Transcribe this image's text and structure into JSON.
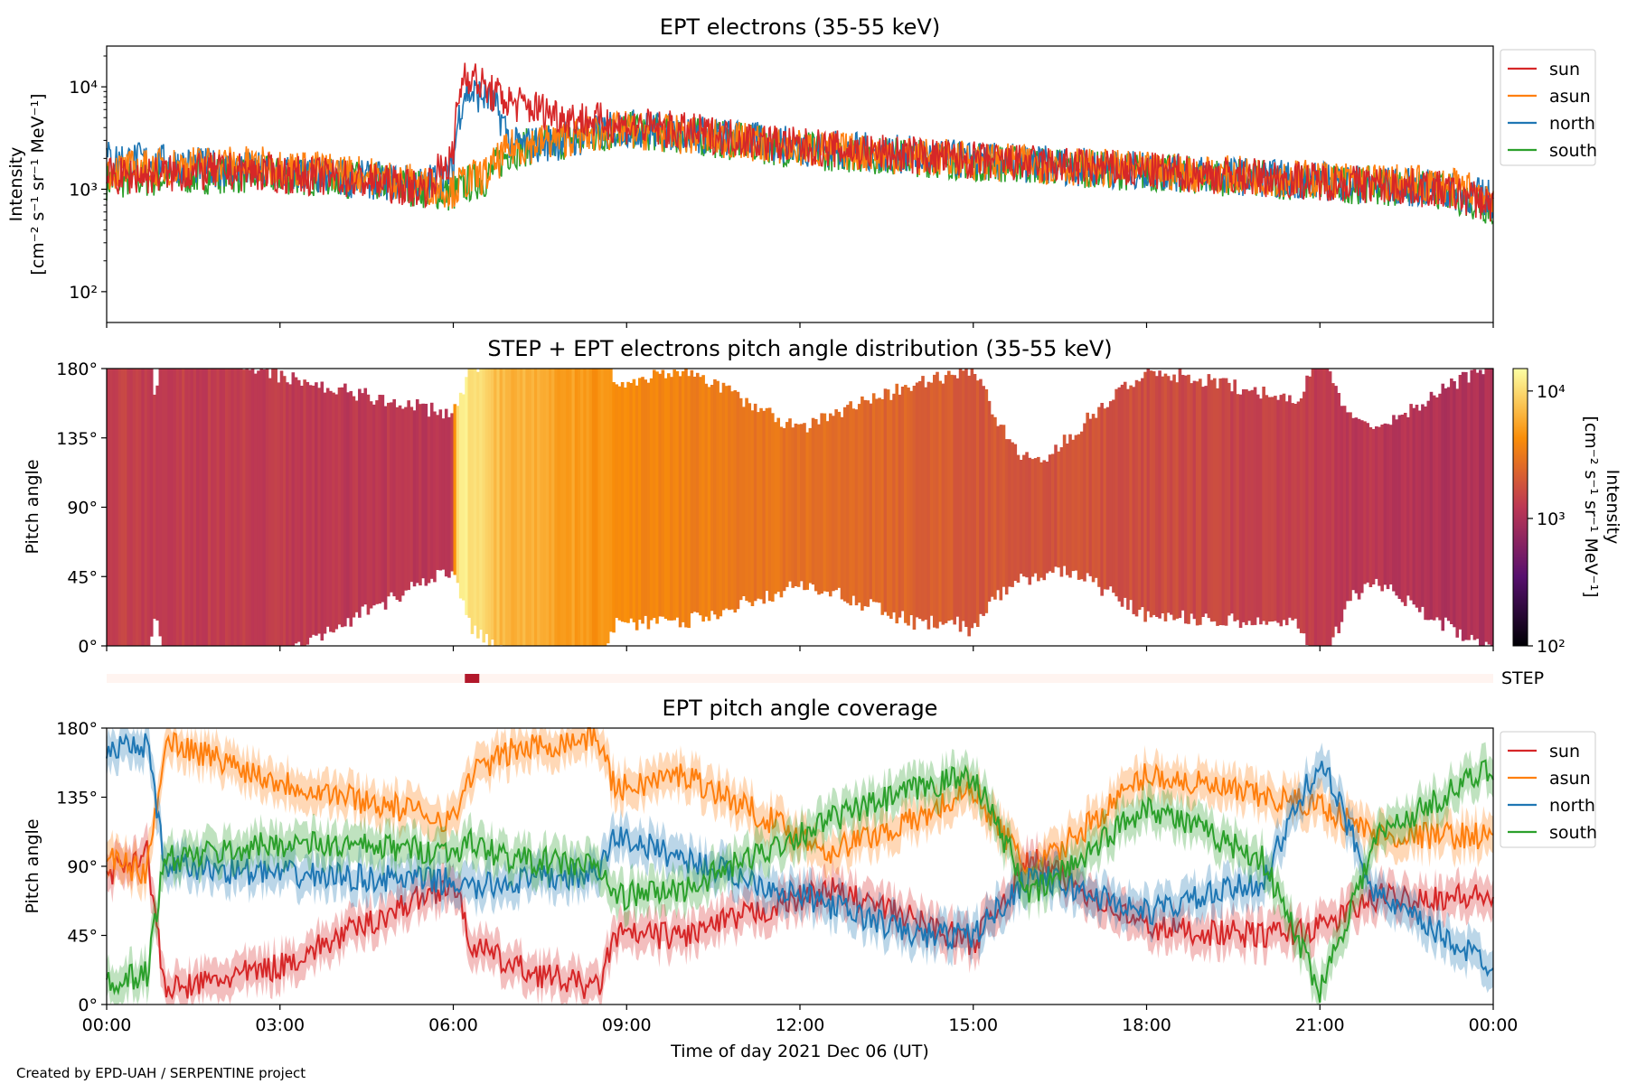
{
  "figure": {
    "credit": "Created by EPD-UAH / SERPENTINE project",
    "xlabel": "Time of day 2021 Dec 06 (UT)",
    "xticks": [
      "00:00",
      "03:00",
      "06:00",
      "09:00",
      "12:00",
      "15:00",
      "18:00",
      "21:00",
      "00:00"
    ]
  },
  "colors": {
    "sun": "#d62728",
    "asun": "#ff7f0e",
    "north": "#1f77b4",
    "south": "#2ca02c"
  },
  "chart_data": [
    {
      "type": "line",
      "title": "EPT electrons (35-55 keV)",
      "ylabel_line1": "Intensity",
      "ylabel_line2": "[cm⁻² s⁻¹ sr⁻¹ MeV⁻¹]",
      "yscale": "log",
      "ylim": [
        50,
        25000
      ],
      "yticks": [
        "10²",
        "10³",
        "10⁴"
      ],
      "x_unit": "hours since 2021-12-06 00:00 UT",
      "xlim": [
        0,
        24
      ],
      "legend": [
        "sun",
        "asun",
        "north",
        "south"
      ],
      "legend_position": "outside-right",
      "series": [
        {
          "name": "sun",
          "x": [
            0,
            2,
            4,
            5.5,
            6.0,
            6.2,
            6.6,
            7.0,
            8.0,
            9.0,
            12,
            15,
            18,
            21,
            23,
            24
          ],
          "values": [
            1300,
            1500,
            1300,
            1000,
            2000,
            14000,
            9000,
            7000,
            5000,
            4200,
            2600,
            1900,
            1500,
            1200,
            1000,
            700
          ]
        },
        {
          "name": "asun",
          "x": [
            0,
            2,
            4,
            5.5,
            6.0,
            6.2,
            6.6,
            7.0,
            8.0,
            9.0,
            12,
            15,
            18,
            21,
            23,
            24
          ],
          "values": [
            1500,
            1800,
            1500,
            1100,
            1000,
            1200,
            1400,
            2500,
            3200,
            3800,
            2500,
            1900,
            1500,
            1250,
            1100,
            900
          ]
        },
        {
          "name": "north",
          "x": [
            0,
            2,
            4,
            5.5,
            6.0,
            6.2,
            6.6,
            7.0,
            8.0,
            9.0,
            12,
            15,
            18,
            21,
            23,
            24
          ],
          "values": [
            2000,
            1600,
            1300,
            1100,
            1500,
            9000,
            8000,
            2600,
            3000,
            4000,
            2600,
            1900,
            1500,
            1200,
            1000,
            800
          ]
        },
        {
          "name": "south",
          "x": [
            0,
            2,
            4,
            5.5,
            6.0,
            6.2,
            6.6,
            7.0,
            8.0,
            9.0,
            12,
            15,
            18,
            21,
            23,
            24
          ],
          "values": [
            1200,
            1400,
            1300,
            1000,
            900,
            1100,
            1300,
            2400,
            3000,
            3800,
            2400,
            1850,
            1450,
            1150,
            1000,
            650
          ]
        }
      ]
    },
    {
      "type": "heatmap",
      "title": "STEP + EPT electrons pitch angle distribution (35-55 keV)",
      "ylabel": "Pitch angle",
      "ylim": [
        0,
        180
      ],
      "yticks": [
        "0°",
        "45°",
        "90°",
        "135°",
        "180°"
      ],
      "x_unit": "hours since 2021-12-06 00:00 UT",
      "colorbar": {
        "label_line1": "Intensity",
        "label_line2": "[cm⁻² s⁻¹ sr⁻¹ MeV⁻¹]",
        "scale": "log",
        "range": [
          100,
          15000
        ],
        "ticks": [
          "10²",
          "10³",
          "10⁴"
        ],
        "colormap": "inferno"
      },
      "intensity_profile": {
        "x": [
          0,
          3,
          6.0,
          6.1,
          6.8,
          8.5,
          9.5,
          12,
          15,
          18,
          21,
          24
        ],
        "values": [
          1400,
          1300,
          1200,
          13000,
          7000,
          4500,
          3800,
          2800,
          2000,
          1700,
          1300,
          1000
        ]
      }
    },
    {
      "type": "bar",
      "label": "STEP",
      "x_unit": "hours since 2021-12-06 00:00 UT",
      "active_interval": [
        6.2,
        6.45
      ]
    },
    {
      "type": "line",
      "title": "EPT pitch angle coverage",
      "ylabel": "Pitch angle",
      "ylim": [
        0,
        180
      ],
      "yticks": [
        "0°",
        "45°",
        "90°",
        "135°",
        "180°"
      ],
      "x_unit": "hours since 2021-12-06 00:00 UT",
      "legend": [
        "sun",
        "asun",
        "north",
        "south"
      ],
      "legend_position": "outside-right",
      "series": [
        {
          "name": "sun",
          "x": [
            0,
            0.7,
            1.0,
            1.2,
            3,
            6.0,
            6.3,
            7,
            8.5,
            8.8,
            10,
            12.5,
            14,
            15,
            16,
            18,
            20,
            21,
            22,
            24
          ],
          "values": [
            85,
            100,
            10,
            10,
            25,
            80,
            40,
            25,
            10,
            45,
            45,
            75,
            55,
            40,
            95,
            50,
            45,
            50,
            70,
            70
          ]
        },
        {
          "name": "asun",
          "x": [
            0,
            0.7,
            1.0,
            1.2,
            3,
            6.0,
            6.3,
            7,
            8.5,
            8.8,
            10,
            12.5,
            14,
            15,
            16,
            18,
            20,
            21,
            22,
            24
          ],
          "values": [
            95,
            85,
            170,
            170,
            145,
            120,
            150,
            165,
            175,
            140,
            150,
            100,
            120,
            140,
            85,
            150,
            135,
            130,
            110,
            110
          ]
        },
        {
          "name": "north",
          "x": [
            0,
            0.7,
            1.0,
            1.2,
            3,
            6.0,
            6.3,
            7,
            8.5,
            8.8,
            10,
            12.5,
            14,
            15,
            16,
            18,
            20,
            21,
            22,
            24
          ],
          "values": [
            165,
            170,
            90,
            90,
            85,
            80,
            75,
            80,
            85,
            110,
            95,
            65,
            45,
            45,
            85,
            60,
            80,
            160,
            70,
            25
          ]
        },
        {
          "name": "south",
          "x": [
            0,
            0.7,
            1.0,
            1.2,
            3,
            6.0,
            6.3,
            7,
            8.5,
            8.8,
            10,
            12.5,
            14,
            15,
            16,
            18,
            20,
            21,
            22,
            24
          ],
          "values": [
            15,
            20,
            95,
            95,
            105,
            100,
            105,
            95,
            90,
            70,
            75,
            120,
            140,
            150,
            70,
            130,
            95,
            10,
            110,
            155
          ]
        }
      ]
    }
  ]
}
